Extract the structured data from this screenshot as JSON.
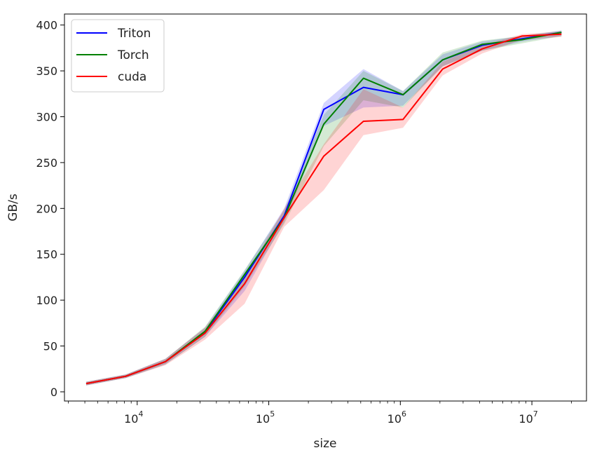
{
  "chart_data": {
    "type": "line",
    "title": "",
    "xlabel": "size",
    "ylabel": "GB/s",
    "xscale": "log",
    "xlim": [
      2800,
      26000000
    ],
    "ylim": [
      -10,
      412
    ],
    "x_ticks": [
      {
        "value": 10000,
        "base": "10",
        "exp": "4"
      },
      {
        "value": 100000,
        "base": "10",
        "exp": "5"
      },
      {
        "value": 1000000,
        "base": "10",
        "exp": "6"
      },
      {
        "value": 10000000,
        "base": "10",
        "exp": "7"
      }
    ],
    "y_ticks": [
      0,
      50,
      100,
      150,
      200,
      250,
      300,
      350,
      400
    ],
    "y_tick_labels": [
      "0",
      "50",
      "100",
      "150",
      "200",
      "250",
      "300",
      "350",
      "400"
    ],
    "x": [
      4096,
      8192,
      16384,
      32768,
      65536,
      131072,
      262144,
      524288,
      1048576,
      2097152,
      4194304,
      8388608,
      16777216
    ],
    "legend_position": "top-left",
    "series": [
      {
        "name": "Triton",
        "color": "#0000ff",
        "values": [
          9,
          17,
          33,
          65,
          125,
          192,
          308,
          332,
          324,
          362,
          378,
          385,
          392
        ],
        "lower": [
          7,
          15,
          30,
          60,
          110,
          185,
          290,
          310,
          312,
          355,
          372,
          382,
          388
        ],
        "upper": [
          11,
          19,
          36,
          70,
          132,
          200,
          315,
          352,
          328,
          368,
          382,
          388,
          394
        ]
      },
      {
        "name": "Torch",
        "color": "#008000",
        "values": [
          9,
          17,
          33,
          66,
          128,
          190,
          292,
          342,
          324,
          362,
          379,
          384,
          392
        ],
        "lower": [
          7,
          15,
          30,
          60,
          115,
          183,
          268,
          318,
          310,
          355,
          372,
          380,
          388
        ],
        "upper": [
          11,
          19,
          36,
          71,
          133,
          198,
          302,
          350,
          328,
          370,
          383,
          388,
          394
        ]
      },
      {
        "name": "cuda",
        "color": "#ff0000",
        "values": [
          9,
          17,
          33,
          64,
          118,
          190,
          257,
          295,
          297,
          352,
          374,
          388,
          390
        ],
        "lower": [
          7,
          15,
          29,
          57,
          96,
          180,
          220,
          280,
          288,
          345,
          369,
          384,
          387
        ],
        "upper": [
          11,
          19,
          36,
          70,
          124,
          200,
          270,
          330,
          310,
          360,
          378,
          390,
          393
        ]
      }
    ]
  }
}
